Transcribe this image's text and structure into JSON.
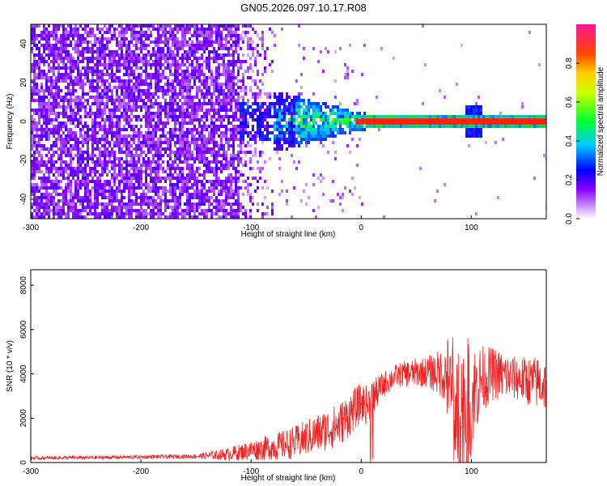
{
  "title": "GN05.2026.097.10.17.R08",
  "chart_data": [
    {
      "type": "heatmap",
      "xlabel": "Height of straight line (km)",
      "ylabel": "Frequency (Hz)",
      "xlim": [
        -300,
        168
      ],
      "ylim": [
        -50,
        50
      ],
      "x_ticks": [
        -300,
        -200,
        -100,
        0,
        100
      ],
      "y_ticks": [
        -40,
        -20,
        0,
        20,
        40
      ],
      "colorbar": {
        "label": "Normalized spectral amplitude",
        "range": [
          0,
          1
        ],
        "ticks": [
          "0.0",
          "0.2",
          "0.4",
          "0.6",
          "0.8"
        ],
        "colors": [
          "#ffffff",
          "#8800ff",
          "#0000ff",
          "#00ccff",
          "#00ff00",
          "#ffff00",
          "#ff6600",
          "#ff0000",
          "#ff1493"
        ]
      },
      "description_regions": [
        {
          "x_range": [
            -300,
            -85
          ],
          "amplitude": 0.08,
          "note": "broadband noise across all frequencies"
        },
        {
          "x_range": [
            -85,
            0
          ],
          "amplitude": 0.35,
          "note": "energy concentrated near 0 Hz, narrowing"
        },
        {
          "x_range": [
            0,
            168
          ],
          "amplitude": 0.95,
          "note": "narrow peak at 0 Hz"
        }
      ]
    },
    {
      "type": "line",
      "xlabel": "Height of straight line (km)",
      "ylabel": "SNR (10 * v/v)",
      "xlim": [
        -300,
        168
      ],
      "ylim": [
        0,
        8700
      ],
      "x_ticks": [
        -300,
        -200,
        -100,
        0,
        100
      ],
      "y_ticks": [
        0,
        2000,
        4000,
        6000,
        8000
      ],
      "color": "#ee2222",
      "series": [
        {
          "envelope_x": [
            -300,
            -250,
            -200,
            -150,
            -120,
            -100,
            -80,
            -60,
            -40,
            -20,
            -10,
            0,
            5,
            10,
            20,
            30,
            40,
            60,
            75,
            80,
            85,
            90,
            95,
            100,
            110,
            120,
            140,
            160,
            168
          ],
          "envelope_mean": [
            200,
            220,
            250,
            280,
            380,
            550,
            700,
            900,
            1300,
            1700,
            2200,
            2700,
            2600,
            2900,
            3500,
            3900,
            4000,
            4100,
            4000,
            3500,
            2500,
            2500,
            2500,
            3000,
            3800,
            4000,
            3800,
            3600,
            3500
          ],
          "envelope_amp": [
            80,
            80,
            80,
            100,
            300,
            450,
            600,
            750,
            900,
            1000,
            1000,
            900,
            900,
            800,
            600,
            500,
            600,
            700,
            1200,
            2500,
            3000,
            3500,
            3200,
            2500,
            1500,
            1200,
            1000,
            1200,
            1200
          ]
        }
      ]
    }
  ]
}
